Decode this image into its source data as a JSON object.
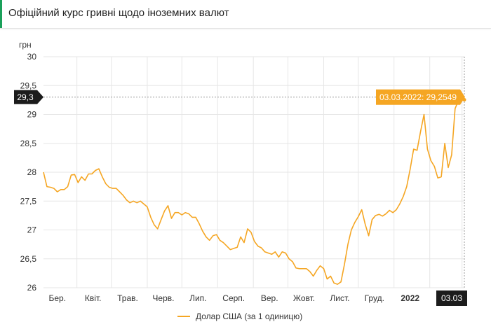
{
  "header": {
    "title": "Офіційний курс гривні щодо іноземних валют"
  },
  "colors": {
    "series": "#f5a623",
    "badge_dark": "#1c1c1c",
    "grid": "#e6e6e6",
    "accent": "#1aa05a"
  },
  "chart_data": {
    "type": "line",
    "title": "",
    "ylabel": "грн",
    "xlabel": "",
    "ylim": [
      26,
      30
    ],
    "yticks": [
      26,
      26.5,
      27,
      27.5,
      28,
      28.5,
      29,
      29.5,
      30
    ],
    "ytick_labels": [
      "26",
      "26,5",
      "27",
      "27,5",
      "28",
      "28,5",
      "29",
      "29,5",
      "30"
    ],
    "xlim": [
      "2021-03-03",
      "2022-03-03"
    ],
    "xticks": [
      {
        "x": "2021-03-15",
        "label": "Бер.",
        "bold": false
      },
      {
        "x": "2021-04-15",
        "label": "Квіт.",
        "bold": false
      },
      {
        "x": "2021-05-15",
        "label": "Трав.",
        "bold": false
      },
      {
        "x": "2021-06-15",
        "label": "Черв.",
        "bold": false
      },
      {
        "x": "2021-07-15",
        "label": "Лип.",
        "bold": false
      },
      {
        "x": "2021-08-15",
        "label": "Серп.",
        "bold": false
      },
      {
        "x": "2021-09-15",
        "label": "Вер.",
        "bold": false
      },
      {
        "x": "2021-10-15",
        "label": "Жовт.",
        "bold": false
      },
      {
        "x": "2021-11-15",
        "label": "Лист.",
        "bold": false
      },
      {
        "x": "2021-12-15",
        "label": "Груд.",
        "bold": false
      },
      {
        "x": "2022-01-15",
        "label": "2022",
        "bold": true
      }
    ],
    "crosshair": {
      "x_label": "03.03",
      "y_label": "29,3",
      "y": 29.3,
      "tooltip": "03.03.2022: 29,2549"
    },
    "legend": "bottom-center",
    "grid": true,
    "series": [
      {
        "name": "Долар США (за 1 одиницю)",
        "color": "#f5a623",
        "points": [
          [
            "2021-03-03",
            28.0
          ],
          [
            "2021-03-06",
            27.75
          ],
          [
            "2021-03-09",
            27.74
          ],
          [
            "2021-03-12",
            27.72
          ],
          [
            "2021-03-15",
            27.66
          ],
          [
            "2021-03-18",
            27.7
          ],
          [
            "2021-03-21",
            27.7
          ],
          [
            "2021-03-24",
            27.75
          ],
          [
            "2021-03-27",
            27.95
          ],
          [
            "2021-03-30",
            27.96
          ],
          [
            "2021-04-02",
            27.82
          ],
          [
            "2021-04-05",
            27.92
          ],
          [
            "2021-04-08",
            27.86
          ],
          [
            "2021-04-11",
            27.97
          ],
          [
            "2021-04-14",
            27.97
          ],
          [
            "2021-04-17",
            28.03
          ],
          [
            "2021-04-20",
            28.06
          ],
          [
            "2021-04-23",
            27.92
          ],
          [
            "2021-04-26",
            27.8
          ],
          [
            "2021-04-29",
            27.74
          ],
          [
            "2021-05-02",
            27.72
          ],
          [
            "2021-05-05",
            27.72
          ],
          [
            "2021-05-08",
            27.66
          ],
          [
            "2021-05-11",
            27.6
          ],
          [
            "2021-05-14",
            27.52
          ],
          [
            "2021-05-17",
            27.47
          ],
          [
            "2021-05-20",
            27.5
          ],
          [
            "2021-05-23",
            27.47
          ],
          [
            "2021-05-26",
            27.5
          ],
          [
            "2021-05-29",
            27.45
          ],
          [
            "2021-06-01",
            27.4
          ],
          [
            "2021-06-04",
            27.22
          ],
          [
            "2021-06-07",
            27.09
          ],
          [
            "2021-06-10",
            27.02
          ],
          [
            "2021-06-13",
            27.18
          ],
          [
            "2021-06-16",
            27.33
          ],
          [
            "2021-06-19",
            27.42
          ],
          [
            "2021-06-22",
            27.2
          ],
          [
            "2021-06-25",
            27.3
          ],
          [
            "2021-06-28",
            27.3
          ],
          [
            "2021-07-01",
            27.26
          ],
          [
            "2021-07-04",
            27.3
          ],
          [
            "2021-07-07",
            27.28
          ],
          [
            "2021-07-10",
            27.22
          ],
          [
            "2021-07-13",
            27.22
          ],
          [
            "2021-07-16",
            27.11
          ],
          [
            "2021-07-19",
            26.98
          ],
          [
            "2021-07-22",
            26.88
          ],
          [
            "2021-07-25",
            26.82
          ],
          [
            "2021-07-28",
            26.9
          ],
          [
            "2021-07-31",
            26.92
          ],
          [
            "2021-08-03",
            26.82
          ],
          [
            "2021-08-06",
            26.78
          ],
          [
            "2021-08-09",
            26.72
          ],
          [
            "2021-08-12",
            26.66
          ],
          [
            "2021-08-15",
            26.68
          ],
          [
            "2021-08-18",
            26.7
          ],
          [
            "2021-08-21",
            26.88
          ],
          [
            "2021-08-24",
            26.78
          ],
          [
            "2021-08-27",
            27.02
          ],
          [
            "2021-08-30",
            26.96
          ],
          [
            "2021-09-02",
            26.8
          ],
          [
            "2021-09-05",
            26.72
          ],
          [
            "2021-09-08",
            26.69
          ],
          [
            "2021-09-11",
            26.62
          ],
          [
            "2021-09-14",
            26.6
          ],
          [
            "2021-09-17",
            26.58
          ],
          [
            "2021-09-20",
            26.62
          ],
          [
            "2021-09-23",
            26.53
          ],
          [
            "2021-09-26",
            26.62
          ],
          [
            "2021-09-29",
            26.6
          ],
          [
            "2021-10-02",
            26.5
          ],
          [
            "2021-10-05",
            26.45
          ],
          [
            "2021-10-08",
            26.34
          ],
          [
            "2021-10-11",
            26.33
          ],
          [
            "2021-10-14",
            26.33
          ],
          [
            "2021-10-17",
            26.33
          ],
          [
            "2021-10-20",
            26.28
          ],
          [
            "2021-10-23",
            26.2
          ],
          [
            "2021-10-26",
            26.3
          ],
          [
            "2021-10-29",
            26.38
          ],
          [
            "2021-11-01",
            26.33
          ],
          [
            "2021-11-04",
            26.15
          ],
          [
            "2021-11-07",
            26.2
          ],
          [
            "2021-11-10",
            26.08
          ],
          [
            "2021-11-13",
            26.06
          ],
          [
            "2021-11-16",
            26.1
          ],
          [
            "2021-11-19",
            26.4
          ],
          [
            "2021-11-22",
            26.75
          ],
          [
            "2021-11-25",
            27.0
          ],
          [
            "2021-11-28",
            27.13
          ],
          [
            "2021-12-01",
            27.23
          ],
          [
            "2021-12-04",
            27.35
          ],
          [
            "2021-12-07",
            27.1
          ],
          [
            "2021-12-10",
            26.9
          ],
          [
            "2021-12-13",
            27.18
          ],
          [
            "2021-12-16",
            27.25
          ],
          [
            "2021-12-19",
            27.27
          ],
          [
            "2021-12-22",
            27.24
          ],
          [
            "2021-12-25",
            27.28
          ],
          [
            "2021-12-28",
            27.34
          ],
          [
            "2021-12-31",
            27.3
          ],
          [
            "2022-01-03",
            27.35
          ],
          [
            "2022-01-06",
            27.45
          ],
          [
            "2022-01-09",
            27.58
          ],
          [
            "2022-01-12",
            27.75
          ],
          [
            "2022-01-15",
            28.05
          ],
          [
            "2022-01-18",
            28.4
          ],
          [
            "2022-01-21",
            28.38
          ],
          [
            "2022-01-24",
            28.7
          ],
          [
            "2022-01-27",
            29.0
          ],
          [
            "2022-01-30",
            28.4
          ],
          [
            "2022-02-02",
            28.2
          ],
          [
            "2022-02-05",
            28.1
          ],
          [
            "2022-02-08",
            27.9
          ],
          [
            "2022-02-11",
            27.92
          ],
          [
            "2022-02-14",
            28.5
          ],
          [
            "2022-02-17",
            28.08
          ],
          [
            "2022-02-20",
            28.3
          ],
          [
            "2022-02-23",
            29.1
          ],
          [
            "2022-02-26",
            29.25
          ],
          [
            "2022-03-03",
            29.2549
          ]
        ]
      }
    ]
  }
}
